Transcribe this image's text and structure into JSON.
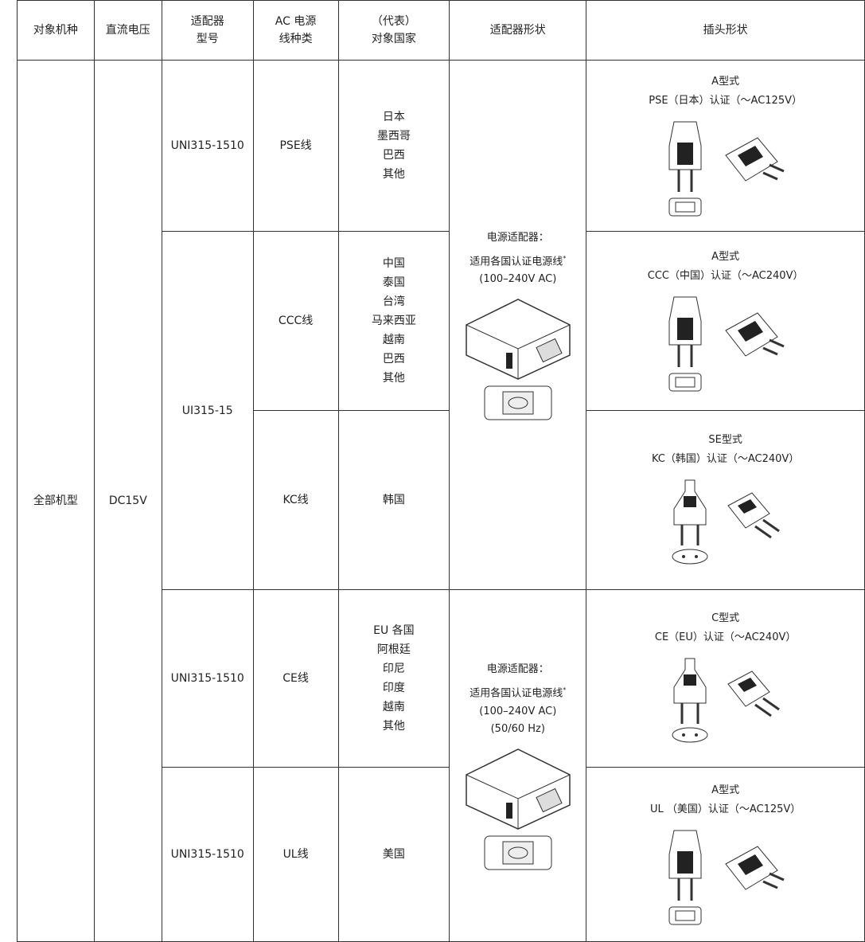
{
  "header": [
    [
      "对象机种"
    ],
    [
      "直流电压"
    ],
    [
      "适配器",
      "型号"
    ],
    [
      "AC 电源",
      "线种类"
    ],
    [
      "（代表）",
      "对象国家"
    ],
    [
      "适配器形状"
    ],
    [
      "插头形状"
    ]
  ],
  "model_type": "全部机型",
  "voltage": "DC15V",
  "models": [
    "UNI315-1510",
    "UI315-15",
    "UNI315-1510",
    "UNI315-1510"
  ],
  "adapters": [
    {
      "title": "电源适配器：",
      "lines": [
        "适用各国认证电源线",
        "(100–240V AC)"
      ],
      "note_mark": "*"
    },
    {
      "title": "电源适配器：",
      "lines": [
        "适用各国认证电源线",
        "(100–240V AC)",
        "(50/60 Hz)"
      ],
      "note_mark": "*"
    }
  ],
  "rows": [
    {
      "cable": "PSE线",
      "countries": [
        "日本",
        "墨西哥",
        "巴西",
        "其他"
      ],
      "plug_type": "A型式",
      "certification": "PSE（日本）认证（～AC125V）"
    },
    {
      "cable": "CCC线",
      "countries": [
        "中国",
        "泰国",
        "台湾",
        "马来西亚",
        "越南",
        "巴西",
        "其他"
      ],
      "plug_type": "A型式",
      "certification": "CCC（中国）认证（～AC240V）"
    },
    {
      "cable": "KC线",
      "countries": [
        "韩国"
      ],
      "plug_type": "SE型式",
      "certification": "KC（韩国）认证（～AC240V）"
    },
    {
      "cable": "CE线",
      "countries": [
        "EU 各国",
        "阿根廷",
        "印尼",
        "印度",
        "越南",
        "其他"
      ],
      "plug_type": "C型式",
      "certification": "CE（EU）认证（～AC240V）"
    },
    {
      "cable": "UL线",
      "countries": [
        "美国"
      ],
      "plug_type": "A型式",
      "certification": "UL （美国）认证（～AC125V）"
    }
  ]
}
